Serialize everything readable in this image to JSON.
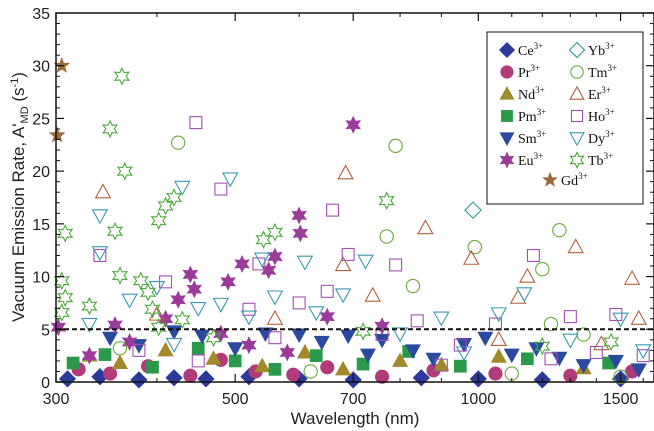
{
  "chart_data": {
    "type": "scatter",
    "title": "",
    "xlabel": "Wavelength (nm)",
    "ylabel_main": "Vacuum Emission Rate, A'",
    "ylabel_sub": "MD",
    "ylabel_unit_pre": " (s",
    "ylabel_unit_sup": "-1",
    "ylabel_unit_post": ")",
    "x_scale": "log",
    "xlim": [
      300,
      1650
    ],
    "ylim": [
      0,
      35
    ],
    "x_ticks": [
      300,
      500,
      700,
      1000,
      1500
    ],
    "x_tick_labels": [
      "300",
      "500",
      "700",
      "1000",
      "1500"
    ],
    "x_minor_ticks": [
      400,
      600,
      800,
      900,
      1100,
      1200,
      1300,
      1400,
      1600
    ],
    "y_ticks": [
      0,
      5,
      10,
      15,
      20,
      25,
      30,
      35
    ],
    "y_tick_labels": [
      "0",
      "5",
      "10",
      "15",
      "20",
      "25",
      "30",
      "35"
    ],
    "grid": false,
    "legend_position": "top-right",
    "threshold_line": {
      "y": 5,
      "style": "dashed"
    },
    "series": [
      {
        "name": "Ce",
        "sup": "3+",
        "marker": "diamond",
        "filled": true,
        "color": "#2b3a9a",
        "points": [
          [
            310,
            0.3
          ],
          [
            340,
            0.5
          ],
          [
            380,
            0.2
          ],
          [
            420,
            0.4
          ],
          [
            460,
            0.3
          ],
          [
            520,
            0.5
          ],
          [
            600,
            0.3
          ],
          [
            700,
            0.2
          ],
          [
            850,
            0.4
          ],
          [
            1000,
            0.3
          ],
          [
            1200,
            0.2
          ],
          [
            1500,
            0.3
          ]
        ]
      },
      {
        "name": "Pr",
        "sup": "3+",
        "marker": "circle",
        "filled": true,
        "color": "#b03a7a",
        "points": [
          [
            320,
            1.2
          ],
          [
            350,
            0.8
          ],
          [
            390,
            1.5
          ],
          [
            440,
            0.6
          ],
          [
            480,
            2.1
          ],
          [
            530,
            1.0
          ],
          [
            590,
            0.7
          ],
          [
            650,
            1.4
          ],
          [
            760,
            0.5
          ],
          [
            880,
            1.1
          ],
          [
            1050,
            0.8
          ],
          [
            1300,
            0.6
          ],
          [
            1550,
            1.0
          ]
        ]
      },
      {
        "name": "Nd",
        "sup": "3+",
        "marker": "triangle-up",
        "filled": true,
        "color": "#a08a2a",
        "points": [
          [
            330,
            2.5
          ],
          [
            360,
            1.8
          ],
          [
            410,
            3.0
          ],
          [
            470,
            2.2
          ],
          [
            540,
            1.5
          ],
          [
            610,
            2.8
          ],
          [
            680,
            1.2
          ],
          [
            800,
            2.0
          ],
          [
            900,
            1.6
          ],
          [
            1060,
            2.4
          ],
          [
            1350,
            1.3
          ]
        ]
      },
      {
        "name": "Pm",
        "sup": "3+",
        "marker": "square",
        "filled": true,
        "color": "#2a9a4a",
        "points": [
          [
            315,
            1.8
          ],
          [
            345,
            2.6
          ],
          [
            395,
            1.4
          ],
          [
            450,
            3.2
          ],
          [
            500,
            2.0
          ],
          [
            560,
            1.2
          ],
          [
            630,
            2.5
          ],
          [
            720,
            1.7
          ],
          [
            820,
            2.9
          ],
          [
            950,
            1.5
          ],
          [
            1150,
            2.2
          ],
          [
            1450,
            1.8
          ]
        ]
      },
      {
        "name": "Sm",
        "sup": "3+",
        "marker": "triangle-down",
        "filled": true,
        "color": "#2a4aa0",
        "points": [
          [
            350,
            4.2
          ],
          [
            380,
            3.5
          ],
          [
            420,
            4.8
          ],
          [
            455,
            4.4
          ],
          [
            500,
            3.2
          ],
          [
            545,
            4.6
          ],
          [
            600,
            4.5
          ],
          [
            640,
            3.8
          ],
          [
            690,
            4.4
          ],
          [
            730,
            2.6
          ],
          [
            760,
            4.0
          ],
          [
            830,
            3.0
          ],
          [
            880,
            2.2
          ],
          [
            960,
            3.6
          ],
          [
            1020,
            4.2
          ],
          [
            1100,
            2.6
          ],
          [
            1180,
            3.2
          ],
          [
            1260,
            2.3
          ],
          [
            1350,
            1.6
          ],
          [
            1480,
            2.0
          ],
          [
            1580,
            1.2
          ]
        ]
      },
      {
        "name": "Eu",
        "sup": "3+",
        "marker": "star6",
        "filled": true,
        "color": "#9a3a9a",
        "points": [
          [
            302,
            5.2
          ],
          [
            355,
            5.4
          ],
          [
            410,
            6.0
          ],
          [
            425,
            7.8
          ],
          [
            440,
            10.2
          ],
          [
            445,
            8.8
          ],
          [
            490,
            9.5
          ],
          [
            510,
            11.2
          ],
          [
            550,
            10.6
          ],
          [
            560,
            11.9
          ],
          [
            600,
            15.8
          ],
          [
            602,
            14.1
          ],
          [
            700,
            24.4
          ],
          [
            650,
            6.2
          ],
          [
            760,
            5.3
          ],
          [
            330,
            2.5
          ],
          [
            370,
            3.8
          ],
          [
            480,
            4.6
          ],
          [
            520,
            3.5
          ],
          [
            580,
            2.8
          ]
        ]
      },
      {
        "name": "Yb",
        "sup": "3+",
        "marker": "diamond",
        "filled": false,
        "color": "#2a9a9a",
        "points": [
          [
            985,
            16.3
          ]
        ]
      },
      {
        "name": "Tm",
        "sup": "3+",
        "marker": "circle",
        "filled": false,
        "color": "#6aaa3a",
        "points": [
          [
            425,
            22.7
          ],
          [
            790,
            22.4
          ],
          [
            770,
            13.8
          ],
          [
            990,
            12.8
          ],
          [
            1260,
            14.4
          ],
          [
            1200,
            10.7
          ],
          [
            830,
            9.1
          ],
          [
            1230,
            5.5
          ],
          [
            1350,
            4.5
          ],
          [
            360,
            3.2
          ],
          [
            620,
            1.0
          ],
          [
            1100,
            0.8
          ],
          [
            1500,
            0.5
          ]
        ]
      },
      {
        "name": "Er",
        "sup": "3+",
        "marker": "triangle-up",
        "filled": false,
        "color": "#b0603a",
        "points": [
          [
            343,
            18.0
          ],
          [
            685,
            19.8
          ],
          [
            680,
            11.1
          ],
          [
            860,
            14.6
          ],
          [
            980,
            11.7
          ],
          [
            1120,
            8.0
          ],
          [
            1150,
            10.0
          ],
          [
            1320,
            12.8
          ],
          [
            1550,
            9.8
          ],
          [
            740,
            8.2
          ],
          [
            400,
            6.4
          ],
          [
            560,
            6.0
          ],
          [
            1060,
            4.0
          ],
          [
            1420,
            3.6
          ],
          [
            1580,
            6.0
          ]
        ]
      },
      {
        "name": "Ho",
        "sup": "3+",
        "marker": "square",
        "filled": false,
        "color": "#a050b0",
        "points": [
          [
            447,
            24.6
          ],
          [
            480,
            18.3
          ],
          [
            660,
            16.3
          ],
          [
            340,
            12.0
          ],
          [
            535,
            11.2
          ],
          [
            410,
            9.5
          ],
          [
            650,
            8.6
          ],
          [
            690,
            12.1
          ],
          [
            790,
            11.1
          ],
          [
            1170,
            12.0
          ],
          [
            600,
            7.5
          ],
          [
            520,
            6.9
          ],
          [
            840,
            5.8
          ],
          [
            1050,
            5.5
          ],
          [
            1300,
            6.2
          ],
          [
            1480,
            6.4
          ],
          [
            560,
            4.2
          ],
          [
            760,
            4.5
          ],
          [
            950,
            3.5
          ],
          [
            1400,
            2.8
          ],
          [
            1600,
            2.5
          ],
          [
            380,
            3.0
          ],
          [
            450,
            2.0
          ],
          [
            900,
            1.6
          ],
          [
            1230,
            2.2
          ]
        ]
      },
      {
        "name": "Dy",
        "sup": "3+",
        "marker": "triangle-down",
        "filled": false,
        "color": "#3a9ab0",
        "points": [
          [
            493,
            19.3
          ],
          [
            430,
            18.5
          ],
          [
            340,
            15.8
          ],
          [
            540,
            11.7
          ],
          [
            340,
            12.3
          ],
          [
            610,
            11.4
          ],
          [
            725,
            11.5
          ],
          [
            370,
            7.8
          ],
          [
            400,
            9.0
          ],
          [
            450,
            7.0
          ],
          [
            480,
            7.4
          ],
          [
            520,
            6.2
          ],
          [
            560,
            8.1
          ],
          [
            630,
            6.6
          ],
          [
            680,
            8.3
          ],
          [
            900,
            6.1
          ],
          [
            1060,
            6.5
          ],
          [
            1140,
            8.4
          ],
          [
            1500,
            6.0
          ],
          [
            330,
            5.5
          ],
          [
            800,
            4.6
          ],
          [
            1300,
            4.0
          ],
          [
            1600,
            3.0
          ],
          [
            420,
            3.6
          ],
          [
            960,
            2.8
          ]
        ]
      },
      {
        "name": "Tb",
        "sup": "3+",
        "marker": "star6",
        "filled": false,
        "color": "#4aaa3a",
        "points": [
          [
            362,
            29.0
          ],
          [
            350,
            24.0
          ],
          [
            365,
            20.0
          ],
          [
            420,
            17.5
          ],
          [
            410,
            16.7
          ],
          [
            402,
            15.3
          ],
          [
            355,
            14.3
          ],
          [
            308,
            14.1
          ],
          [
            542,
            13.5
          ],
          [
            560,
            14.2
          ],
          [
            770,
            17.2
          ],
          [
            305,
            9.6
          ],
          [
            308,
            8.0
          ],
          [
            382,
            9.6
          ],
          [
            390,
            8.5
          ],
          [
            395,
            6.9
          ],
          [
            402,
            5.2
          ],
          [
            305,
            6.6
          ],
          [
            330,
            7.2
          ],
          [
            360,
            10.1
          ],
          [
            430,
            5.9
          ],
          [
            470,
            4.2
          ],
          [
            720,
            4.8
          ],
          [
            1200,
            3.4
          ],
          [
            1460,
            3.8
          ]
        ]
      },
      {
        "name": "Gd",
        "sup": "3+",
        "marker": "star5",
        "filled": true,
        "color": "#9a6a3a",
        "points": [
          [
            305,
            30.0
          ],
          [
            301,
            23.4
          ]
        ]
      }
    ]
  }
}
